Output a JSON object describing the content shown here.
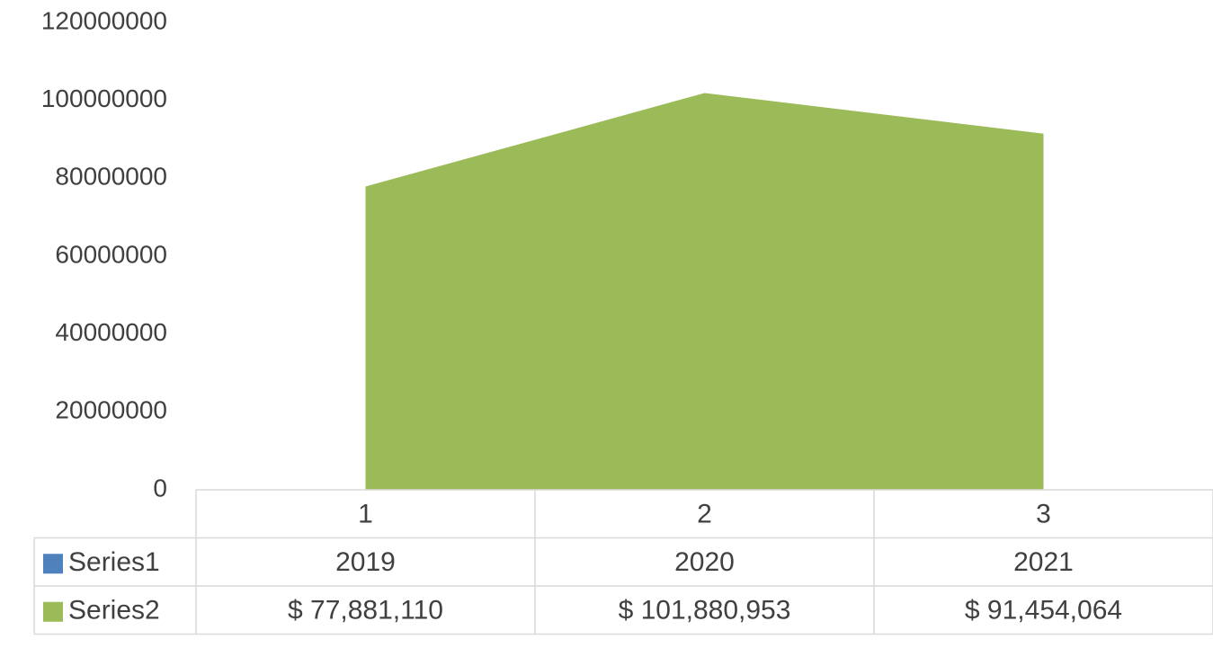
{
  "chart_data": {
    "type": "area",
    "categories": [
      "1",
      "2",
      "3"
    ],
    "series": [
      {
        "name": "Series1",
        "color": "#4f81bd",
        "values": [
          2019,
          2020,
          2021
        ]
      },
      {
        "name": "Series2",
        "color": "#9bbb59",
        "values": [
          77881110,
          101880953,
          91454064
        ],
        "value_labels": [
          "$ 77,881,110",
          "$ 101,880,953",
          "$ 91,454,064"
        ]
      }
    ],
    "ylim": [
      0,
      120000000
    ],
    "yticks": [
      0,
      20000000,
      40000000,
      60000000,
      80000000,
      100000000,
      120000000
    ],
    "grid": false,
    "data_table": true
  }
}
